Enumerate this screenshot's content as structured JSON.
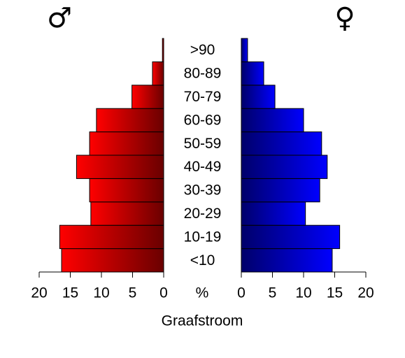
{
  "chart_data": {
    "type": "pyramid",
    "title": "Graafstroom",
    "axis_label": "%",
    "categories": [
      "<10",
      "10-19",
      "20-29",
      "30-39",
      "40-49",
      "50-59",
      "60-69",
      "70-79",
      "80-89",
      ">90"
    ],
    "series": [
      {
        "name": "♂",
        "color": "#ff0000",
        "values": [
          16.4,
          16.7,
          11.7,
          11.9,
          14.0,
          11.9,
          10.8,
          5.1,
          1.8,
          0.2
        ]
      },
      {
        "name": "♀",
        "color": "#0000ff",
        "values": [
          14.6,
          15.8,
          10.3,
          12.6,
          13.8,
          12.9,
          10.0,
          5.4,
          3.6,
          1.0
        ]
      }
    ],
    "xlim": [
      0,
      20
    ],
    "xticks": [
      0,
      5,
      10,
      15,
      20
    ]
  }
}
